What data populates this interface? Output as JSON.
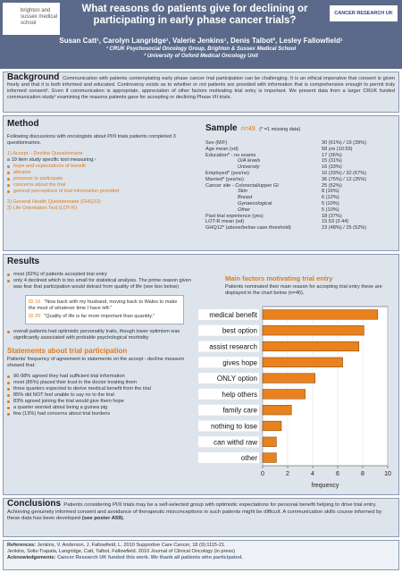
{
  "header": {
    "logo_left": "brighton and sussex medical school",
    "logo_right": "CANCER RESEARCH UK",
    "title": "What reasons do patients give for declining or participating in early phase cancer trials?",
    "authors": "Susan Catt¹, Carolyn Langridge¹, Valerie Jenkins¹, Denis Talbot², Lesley Fallowfield¹",
    "affiliations": [
      "¹ CRUK Psychosocial Oncology Group, Brighton & Sussex Medical School",
      "² University of Oxford Medical Oncology Unit"
    ]
  },
  "background": {
    "heading": "Background",
    "text": "Communication with patients contemplating early phase cancer trial participation can be challenging. It is an ethical imperative that consent is given freely and that it is both informed and educated. Controversy exists as to whether or not patients are provided with information that is comprehensive enough to permit truly informed consent¹. Even if communication is appropriate, appreciation of other factors motivating trial entry is important. We present data from a larger CRUK funded communication study² examining the reasons patients gave for accepting or declining Phase I/II trials."
  },
  "method": {
    "heading": "Method",
    "intro": "Following discussions with oncologists about PI/II trials patients completed 3 questionnaires.",
    "q1": "1)  Accept – Decline Questionnaire",
    "q1_desc": "a 19 item study specific tool measuring:-",
    "bullets": [
      "hope and expectations of benefit",
      "altruism",
      "pressure to participate",
      "concerns about the trial",
      "general perceptions of trial information provided"
    ],
    "q2": "2)  General Health Questionnaire (GHQ12)",
    "q3": "3)  Life Orientation Test (LOT-R)"
  },
  "sample": {
    "heading": "Sample",
    "n": "n=49",
    "note": "(* =1 missing data)",
    "rows": [
      {
        "label": "Sex (M/F)",
        "value": "30 (61%) / 19 (39%)"
      },
      {
        "label": "Age mean (sd)",
        "value": "58 yrs (10.59)"
      },
      {
        "label": "Education* - no exams",
        "value": "17 (36%)",
        "sub": [
          {
            "label": "O/A levels",
            "value": "15 (31%)"
          },
          {
            "label": "University",
            "value": "16 (33%)"
          }
        ]
      },
      {
        "label": "Employed* (yes/no)",
        "value": "16 (33%) / 32 (67%)"
      },
      {
        "label": "Married* (yes/no)",
        "value": "36 (75%) / 12 (25%)"
      },
      {
        "label": "Cancer site - Colorectal/upper GI",
        "value": "25 (52%)",
        "sub": [
          {
            "label": "Skin",
            "value": "8 (16%)"
          },
          {
            "label": "Breast",
            "value": "6 (12%)"
          },
          {
            "label": "Gynaecological",
            "value": "5 (10%)"
          },
          {
            "label": "Other",
            "value": "5 (10%)"
          }
        ]
      },
      {
        "label": "Past trial experience (yes)",
        "value": "18 (37%)"
      },
      {
        "label": "LOT-R mean (sd)",
        "value": "15.53 (3.44)"
      },
      {
        "label": "GHQ12* (above/below case threshold)",
        "value": "23 (48%) / 25 (52%)"
      }
    ]
  },
  "results": {
    "heading": "Results",
    "bullets_1": [
      "most (92%) of patients accepted trial entry",
      "only 4 declined which is too small for statistical analysis. The prime reason given was fear that participation would detract from quality of life (see box below)"
    ],
    "quotes": [
      {
        "id": "ID 16",
        "text": "“Now back with my husband, moving back to Wales to make the most of whatever time I have left.”"
      },
      {
        "id": "ID 20",
        "text": "“Quality of life is far more important than quantity.”"
      }
    ],
    "bullets_2": [
      "overall patients had optimistic personality traits, though lower optimism was significantly associated with probable psychological morbidity"
    ],
    "statements_heading": "Statements about trial participation",
    "statements_intro": "Patients' frequency of agreement to statements on the accept - decline measure showed that:",
    "bullets_3": [
      "90-98% agreed they had sufficient trial information",
      "most (86%) placed their trust in the doctor treating them",
      "three quarters expected to derive medical benefit from the trial",
      "85% did NOT feel unable to say no to the trial",
      "83% agreed joining the trial would give them hope",
      "a quarter worried about being a guinea pig",
      "few (13%) had concerns about trial burdens"
    ]
  },
  "chart_data": {
    "type": "hbar",
    "title": "Main factors motivating trial entry",
    "subtitle": "Patients nominated their main reason for accepting trial entry these are displayed in the chart below (n=46).",
    "xlabel": "frequency",
    "categories": [
      "medical benefit",
      "best option",
      "assist research",
      "gives hope",
      "ONLY option",
      "help others",
      "family care",
      "nothing to lose",
      "can withd raw",
      "other"
    ],
    "values": [
      9.2,
      8.1,
      7.7,
      6.4,
      4.2,
      3.4,
      2.3,
      1.5,
      1.1,
      1.1
    ],
    "color": "#e8821e",
    "xlim": [
      0,
      10
    ],
    "xticks": [
      0,
      2,
      4,
      6,
      8,
      10
    ],
    "grid": true
  },
  "conclusions": {
    "heading": "Conclusions",
    "text": "Patients considering PI/II trials may be a self-selected group with optimistic expectations for personal benefit helping to drive trial entry. Achieving genuinely informed consent and avoidance of therapeutic misconceptions in such patients might be difficult. A communication skills course informed by these data has been developed",
    "emphasis": "(see poster A59)."
  },
  "references": {
    "heading": "References:",
    "items": [
      "Jenkins, V. Anderson, J. Fallowfield, L. 2010 Supportive Care Cancer, 18 (9):1115-21.",
      "Jenkins, Solis-Trapala, Langridge, Catt, Talbot, Fallowfield. 2010 Journal of Clinical Oncology (in press)"
    ],
    "ack_heading": "Acknowledgements:",
    "ack_text": "Cancer Research UK funded this work. We thank all patients who participated."
  }
}
